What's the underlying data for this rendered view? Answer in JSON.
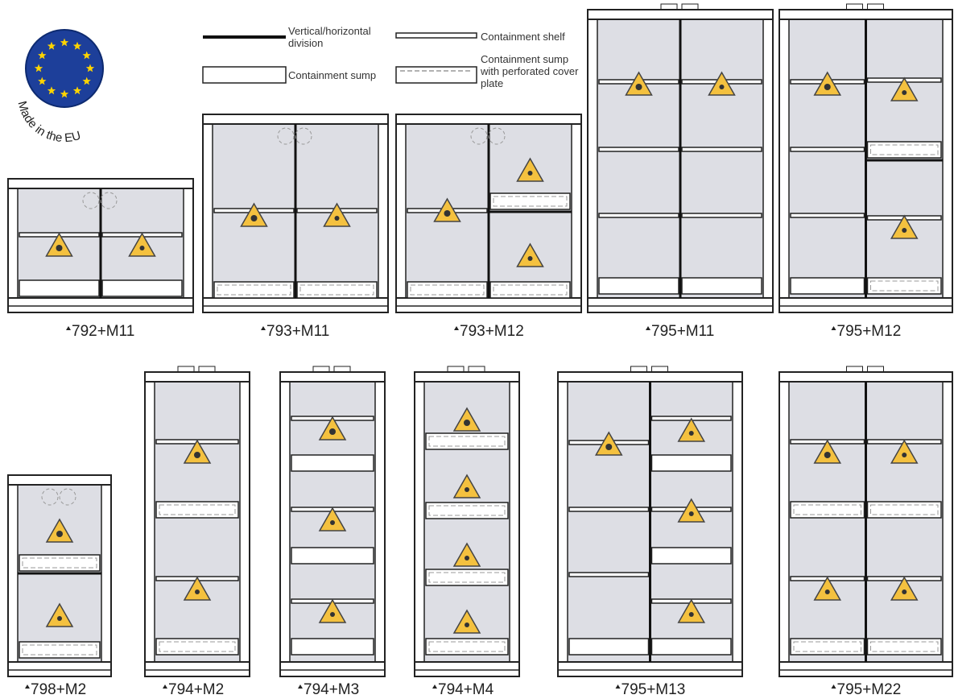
{
  "badge": "Made in the EU",
  "legend": [
    "Vertical/horizontal division",
    "Containment shelf",
    "Containment sump",
    "Containment sump with perforated cover plate"
  ],
  "cabinets": [
    "792+M11",
    "793+M11",
    "793+M12",
    "795+M11",
    "795+M12",
    "798+M2",
    "794+M2",
    "794+M3",
    "794+M4",
    "795+M13",
    "795+M22"
  ]
}
